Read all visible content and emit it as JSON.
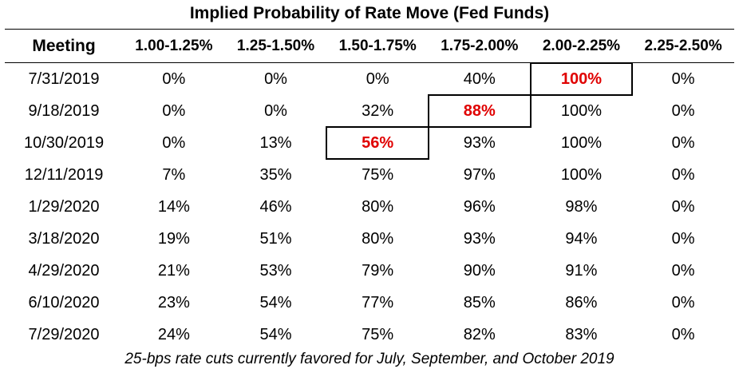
{
  "chart_data": {
    "type": "table",
    "title": "Implied Probability of Rate Move (Fed Funds)",
    "header": {
      "meeting": "Meeting",
      "ranges": [
        "1.00-1.25%",
        "1.25-1.50%",
        "1.50-1.75%",
        "1.75-2.00%",
        "2.00-2.25%",
        "2.25-2.50%"
      ]
    },
    "rows": [
      {
        "meeting": "7/31/2019",
        "values": [
          "0%",
          "0%",
          "0%",
          "40%",
          "100%",
          "0%"
        ],
        "highlight": 4
      },
      {
        "meeting": "9/18/2019",
        "values": [
          "0%",
          "0%",
          "32%",
          "88%",
          "100%",
          "0%"
        ],
        "highlight": 3
      },
      {
        "meeting": "10/30/2019",
        "values": [
          "0%",
          "13%",
          "56%",
          "93%",
          "100%",
          "0%"
        ],
        "highlight": 2
      },
      {
        "meeting": "12/11/2019",
        "values": [
          "7%",
          "35%",
          "75%",
          "97%",
          "100%",
          "0%"
        ],
        "highlight": null
      },
      {
        "meeting": "1/29/2020",
        "values": [
          "14%",
          "46%",
          "80%",
          "96%",
          "98%",
          "0%"
        ],
        "highlight": null
      },
      {
        "meeting": "3/18/2020",
        "values": [
          "19%",
          "51%",
          "80%",
          "93%",
          "94%",
          "0%"
        ],
        "highlight": null
      },
      {
        "meeting": "4/29/2020",
        "values": [
          "21%",
          "53%",
          "79%",
          "90%",
          "91%",
          "0%"
        ],
        "highlight": null
      },
      {
        "meeting": "6/10/2020",
        "values": [
          "23%",
          "54%",
          "77%",
          "85%",
          "86%",
          "0%"
        ],
        "highlight": null
      },
      {
        "meeting": "7/29/2020",
        "values": [
          "24%",
          "54%",
          "75%",
          "82%",
          "83%",
          "0%"
        ],
        "highlight": null
      }
    ],
    "highlight_color": "#e00000"
  },
  "footnote": "25-bps rate cuts currently favored for July, September, and October 2019"
}
